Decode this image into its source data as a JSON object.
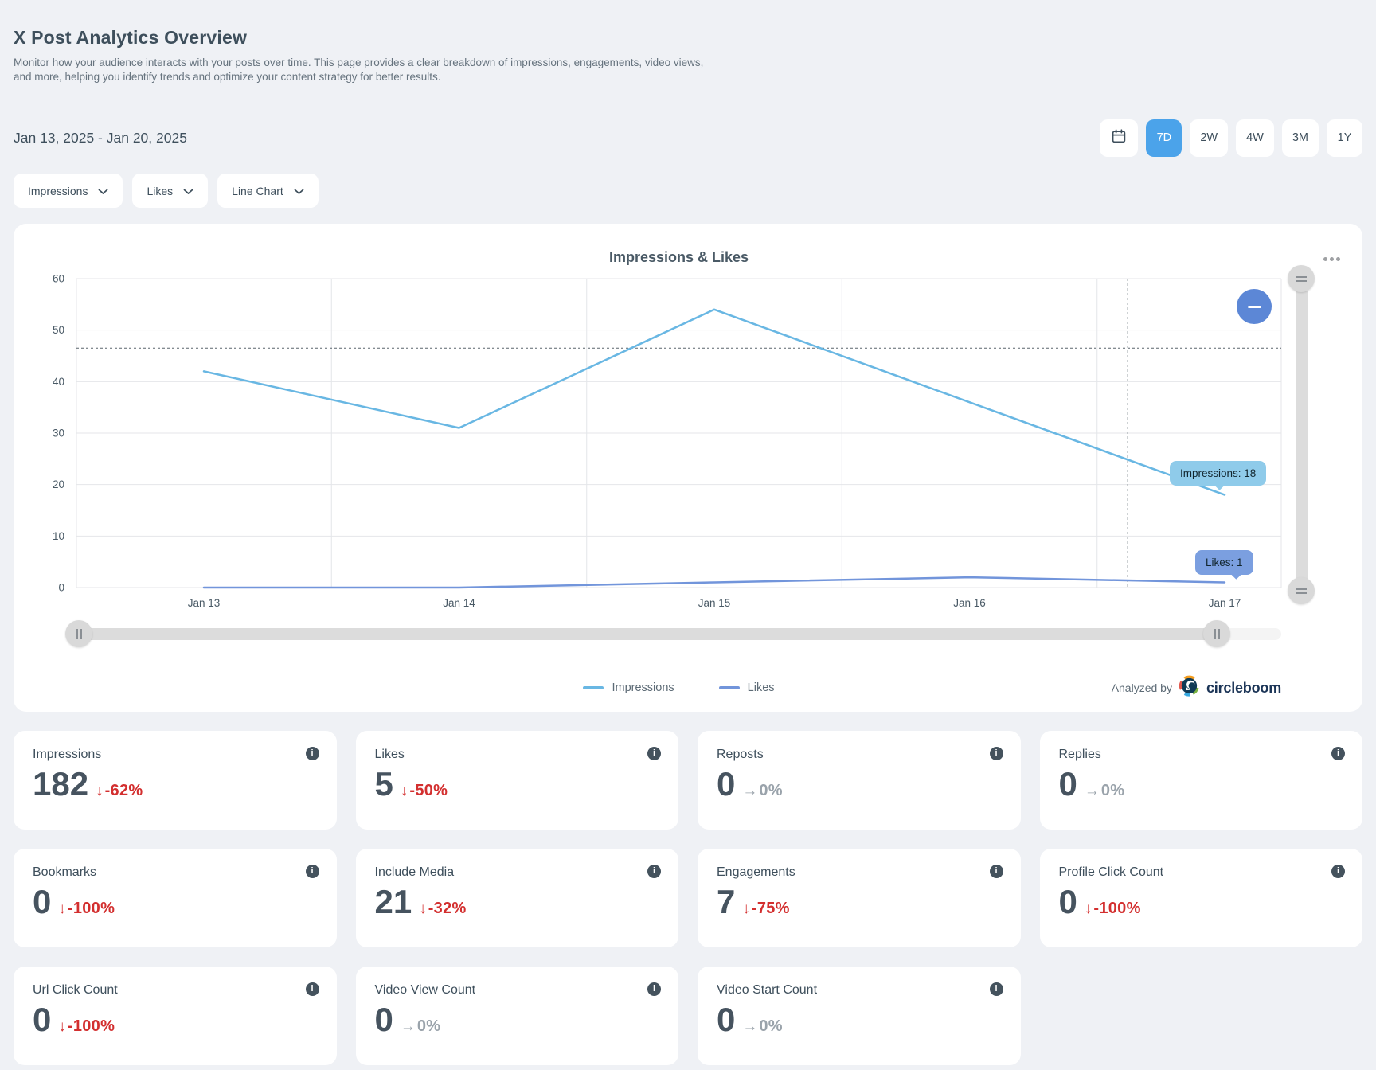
{
  "header": {
    "title": "X Post Analytics Overview",
    "subtitle": "Monitor how your audience interacts with your posts over time. This page provides a clear breakdown of impressions, engagements, video views, and more, helping you identify trends and optimize your content strategy for better results."
  },
  "toolbar": {
    "date_range": "Jan 13, 2025 - Jan 20, 2025",
    "range_buttons": [
      "7D",
      "2W",
      "4W",
      "3M",
      "1Y"
    ],
    "active_range": "7D"
  },
  "filters": {
    "metric_primary": "Impressions",
    "metric_secondary": "Likes",
    "chart_type": "Line Chart"
  },
  "chart_data": {
    "type": "line",
    "title": "Impressions & Likes",
    "categories": [
      "Jan 13",
      "Jan 14",
      "Jan 15",
      "Jan 16",
      "Jan 17"
    ],
    "series": [
      {
        "name": "Impressions",
        "color": "#69b7e3",
        "values": [
          42,
          31,
          54,
          36,
          18
        ]
      },
      {
        "name": "Likes",
        "color": "#7295db",
        "values": [
          0,
          0,
          1,
          2,
          1
        ]
      }
    ],
    "ylim": [
      0,
      60
    ],
    "y_ticks": [
      0,
      10,
      20,
      30,
      40,
      50,
      60
    ],
    "grid": true,
    "legend_position": "bottom",
    "crosshair": {
      "x_index": 3.62,
      "y_value": 46.5
    },
    "tooltips": [
      {
        "text": "Impressions: 18",
        "series": 0,
        "point_index": 4,
        "bg": "#8fcbea"
      },
      {
        "text": "Likes: 1",
        "series": 1,
        "point_index": 4,
        "bg": "#7b9fe0"
      }
    ]
  },
  "branding": {
    "analyzed_by": "Analyzed by",
    "brand_name": "circleboom"
  },
  "cards": [
    {
      "label": "Impressions",
      "value": "182",
      "change": "-62%",
      "direction": "down"
    },
    {
      "label": "Likes",
      "value": "5",
      "change": "-50%",
      "direction": "down"
    },
    {
      "label": "Reposts",
      "value": "0",
      "change": "0%",
      "direction": "flat"
    },
    {
      "label": "Replies",
      "value": "0",
      "change": "0%",
      "direction": "flat"
    },
    {
      "label": "Bookmarks",
      "value": "0",
      "change": "-100%",
      "direction": "down"
    },
    {
      "label": "Include Media",
      "value": "21",
      "change": "-32%",
      "direction": "down"
    },
    {
      "label": "Engagements",
      "value": "7",
      "change": "-75%",
      "direction": "down"
    },
    {
      "label": "Profile Click Count",
      "value": "0",
      "change": "-100%",
      "direction": "down"
    },
    {
      "label": "Url Click Count",
      "value": "0",
      "change": "-100%",
      "direction": "down"
    },
    {
      "label": "Video View Count",
      "value": "0",
      "change": "0%",
      "direction": "flat"
    },
    {
      "label": "Video Start Count",
      "value": "0",
      "change": "0%",
      "direction": "flat"
    }
  ],
  "colors": {
    "accent_blue": "#4ba3ea",
    "negative_red": "#d32f2f",
    "neutral_gray": "#9aa3ab"
  }
}
